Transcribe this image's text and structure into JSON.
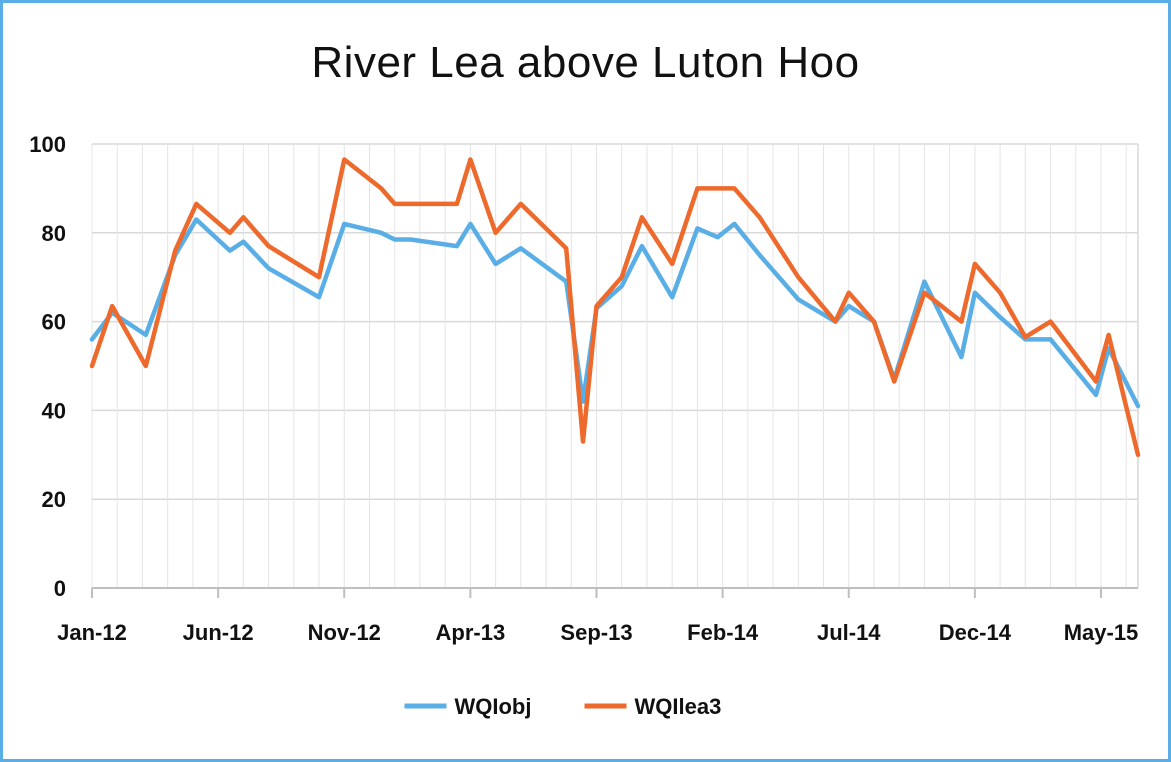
{
  "chart_data": {
    "type": "line",
    "title": "River Lea above Luton Hoo",
    "xlabel": "",
    "ylabel": "",
    "ylim": [
      0,
      100
    ],
    "yticks": [
      "0",
      "20",
      "40",
      "60",
      "80",
      "100"
    ],
    "x_tick_labels": [
      "Jan-12",
      "Jun-12",
      "Nov-12",
      "Apr-13",
      "Sep-13",
      "Feb-14",
      "Jul-14",
      "Dec-14",
      "May-15"
    ],
    "grid": true,
    "legend_position": "bottom",
    "series": [
      {
        "name": "WQIobj",
        "color": "#5aaee6",
        "points": [
          [
            "2012-01",
            56
          ],
          [
            "2012-01-25",
            62
          ],
          [
            "2012-03-05",
            57
          ],
          [
            "2012-04-10",
            75
          ],
          [
            "2012-05-05",
            83
          ],
          [
            "2012-06-15",
            76
          ],
          [
            "2012-07-01",
            78
          ],
          [
            "2012-08-01",
            72
          ],
          [
            "2012-10-01",
            65.5
          ],
          [
            "2012-11-01",
            82
          ],
          [
            "2012-12-15",
            80
          ],
          [
            "2013-01-01",
            78.5
          ],
          [
            "2013-01-20",
            78.5
          ],
          [
            "2013-03-15",
            77
          ],
          [
            "2013-04-01",
            82
          ],
          [
            "2013-05-01",
            73
          ],
          [
            "2013-06-01",
            76.5
          ],
          [
            "2013-07-25",
            69
          ],
          [
            "2013-08-15",
            42
          ],
          [
            "2013-09-01",
            63
          ],
          [
            "2013-10-01",
            68
          ],
          [
            "2013-10-25",
            77
          ],
          [
            "2013-12-01",
            65.5
          ],
          [
            "2014-01-01",
            81
          ],
          [
            "2014-01-25",
            79
          ],
          [
            "2014-02-15",
            82
          ],
          [
            "2014-03-15",
            75
          ],
          [
            "2014-05-01",
            65
          ],
          [
            "2014-06-15",
            60
          ],
          [
            "2014-07-01",
            63.5
          ],
          [
            "2014-08-01",
            60
          ],
          [
            "2014-08-25",
            47
          ],
          [
            "2014-10-01",
            69
          ],
          [
            "2014-11-15",
            52
          ],
          [
            "2014-12-01",
            66.5
          ],
          [
            "2015-01-01",
            61
          ],
          [
            "2015-02-01",
            56
          ],
          [
            "2015-03-01",
            56
          ],
          [
            "2015-04-25",
            43.5
          ],
          [
            "2015-05-10",
            54
          ],
          [
            "2015-06-15",
            41
          ]
        ]
      },
      {
        "name": "WQIlea3",
        "color": "#ed6a2c",
        "points": [
          [
            "2012-01",
            50
          ],
          [
            "2012-01-25",
            63.5
          ],
          [
            "2012-03-05",
            50
          ],
          [
            "2012-04-10",
            76
          ],
          [
            "2012-05-05",
            86.5
          ],
          [
            "2012-06-15",
            80
          ],
          [
            "2012-07-01",
            83.5
          ],
          [
            "2012-08-01",
            77
          ],
          [
            "2012-10-01",
            70
          ],
          [
            "2012-11-01",
            96.5
          ],
          [
            "2012-12-15",
            90
          ],
          [
            "2013-01-01",
            86.5
          ],
          [
            "2013-01-20",
            86.5
          ],
          [
            "2013-03-15",
            86.5
          ],
          [
            "2013-04-01",
            96.5
          ],
          [
            "2013-05-01",
            80
          ],
          [
            "2013-06-01",
            86.5
          ],
          [
            "2013-07-25",
            76.5
          ],
          [
            "2013-08-15",
            33
          ],
          [
            "2013-09-01",
            63.5
          ],
          [
            "2013-10-01",
            70
          ],
          [
            "2013-10-25",
            83.5
          ],
          [
            "2013-12-01",
            73
          ],
          [
            "2014-01-01",
            90
          ],
          [
            "2014-01-25",
            90
          ],
          [
            "2014-02-15",
            90
          ],
          [
            "2014-03-15",
            83.5
          ],
          [
            "2014-05-01",
            70
          ],
          [
            "2014-06-15",
            60
          ],
          [
            "2014-07-01",
            66.5
          ],
          [
            "2014-08-01",
            60
          ],
          [
            "2014-08-25",
            46.5
          ],
          [
            "2014-10-01",
            66.5
          ],
          [
            "2014-11-15",
            60
          ],
          [
            "2014-12-01",
            73
          ],
          [
            "2015-01-01",
            66.5
          ],
          [
            "2015-02-01",
            56.5
          ],
          [
            "2015-03-01",
            60
          ],
          [
            "2015-04-25",
            46.5
          ],
          [
            "2015-05-10",
            57
          ],
          [
            "2015-06-15",
            30
          ]
        ]
      }
    ]
  }
}
